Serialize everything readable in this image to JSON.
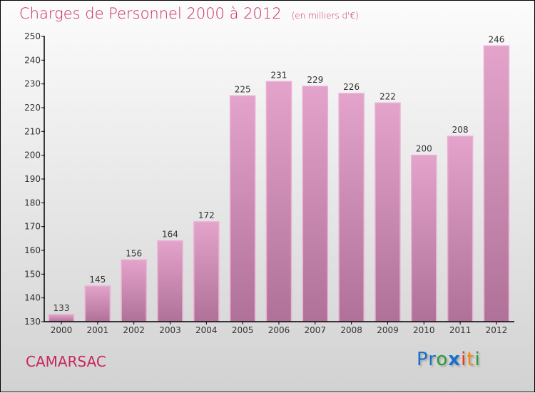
{
  "chart_data": {
    "type": "bar",
    "title": "Charges de Personnel 2000 à 2012",
    "unit": "(en milliers d'€)",
    "categories": [
      "2000",
      "2001",
      "2002",
      "2003",
      "2004",
      "2005",
      "2006",
      "2007",
      "2008",
      "2009",
      "2010",
      "2011",
      "2012"
    ],
    "values": [
      133,
      145,
      156,
      164,
      172,
      225,
      231,
      229,
      226,
      222,
      200,
      208,
      246
    ],
    "ylim": [
      130,
      250
    ],
    "yticks": [
      130,
      140,
      150,
      160,
      170,
      180,
      190,
      200,
      210,
      220,
      230,
      240,
      250
    ],
    "xlabel": "",
    "ylabel": "",
    "bar_color": "#d48ab4"
  },
  "footer": {
    "city": "CAMARSAC",
    "logo": "Proxiti"
  }
}
